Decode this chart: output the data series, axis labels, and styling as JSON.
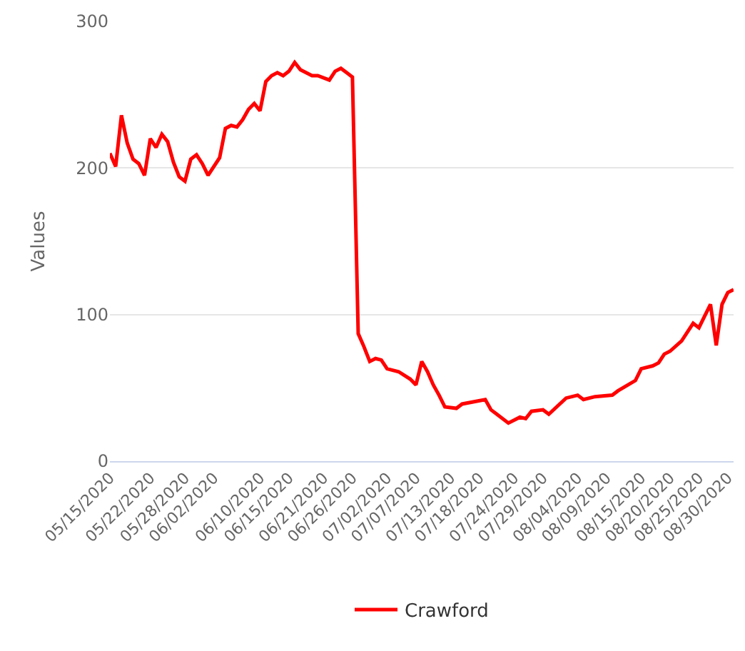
{
  "chart_data": {
    "type": "line",
    "ylabel": "Values",
    "x": [
      "2020-05-15",
      "2020-05-16",
      "2020-05-17",
      "2020-05-18",
      "2020-05-19",
      "2020-05-20",
      "2020-05-21",
      "2020-05-22",
      "2020-05-23",
      "2020-05-24",
      "2020-05-25",
      "2020-05-26",
      "2020-05-27",
      "2020-05-28",
      "2020-05-29",
      "2020-05-30",
      "2020-05-31",
      "2020-06-01",
      "2020-06-03",
      "2020-06-04",
      "2020-06-05",
      "2020-06-06",
      "2020-06-07",
      "2020-06-08",
      "2020-06-09",
      "2020-06-10",
      "2020-06-11",
      "2020-06-12",
      "2020-06-13",
      "2020-06-14",
      "2020-06-15",
      "2020-06-16",
      "2020-06-17",
      "2020-06-19",
      "2020-06-20",
      "2020-06-22",
      "2020-06-23",
      "2020-06-24",
      "2020-06-25",
      "2020-06-26",
      "2020-06-27",
      "2020-06-28",
      "2020-06-29",
      "2020-06-30",
      "2020-07-01",
      "2020-07-02",
      "2020-07-04",
      "2020-07-06",
      "2020-07-07",
      "2020-07-08",
      "2020-07-09",
      "2020-07-10",
      "2020-07-11",
      "2020-07-12",
      "2020-07-14",
      "2020-07-15",
      "2020-07-19",
      "2020-07-20",
      "2020-07-21",
      "2020-07-23",
      "2020-07-25",
      "2020-07-26",
      "2020-07-27",
      "2020-07-29",
      "2020-07-30",
      "2020-08-02",
      "2020-08-04",
      "2020-08-05",
      "2020-08-07",
      "2020-08-10",
      "2020-08-11",
      "2020-08-14",
      "2020-08-15",
      "2020-08-17",
      "2020-08-18",
      "2020-08-19",
      "2020-08-20",
      "2020-08-22",
      "2020-08-24",
      "2020-08-25",
      "2020-08-26",
      "2020-08-27",
      "2020-08-28",
      "2020-08-29",
      "2020-08-30",
      "2020-08-31"
    ],
    "series": [
      {
        "name": "Crawford",
        "color": "#ff0000",
        "values": [
          210,
          201,
          236,
          217,
          206,
          203,
          195,
          220,
          214,
          223,
          218,
          204,
          194,
          191,
          206,
          209,
          203,
          195,
          207,
          227,
          229,
          228,
          233,
          240,
          244,
          239,
          259,
          263,
          265,
          263,
          266,
          272,
          267,
          263,
          263,
          260,
          266,
          268,
          265,
          262,
          87,
          78,
          68,
          70,
          69,
          63,
          61,
          56,
          52,
          68,
          61,
          52,
          45,
          37,
          36,
          39,
          42,
          35,
          32,
          26,
          30,
          29,
          34,
          35,
          32,
          43,
          45,
          42,
          44,
          45,
          48,
          55,
          63,
          65,
          67,
          73,
          75,
          82,
          94,
          91,
          99,
          107,
          79,
          107,
          115,
          117
        ]
      }
    ],
    "xlim": [
      "2020-05-15",
      "2020-08-31"
    ],
    "xticks": [
      {
        "value": "2020-05-15",
        "label": "05/15/2020"
      },
      {
        "value": "2020-05-22",
        "label": "05/22/2020"
      },
      {
        "value": "2020-05-28",
        "label": "05/28/2020"
      },
      {
        "value": "2020-06-02",
        "label": "06/02/2020"
      },
      {
        "value": "2020-06-10",
        "label": "06/10/2020"
      },
      {
        "value": "2020-06-15",
        "label": "06/15/2020"
      },
      {
        "value": "2020-06-21",
        "label": "06/21/2020"
      },
      {
        "value": "2020-06-26",
        "label": "06/26/2020"
      },
      {
        "value": "2020-07-02",
        "label": "07/02/2020"
      },
      {
        "value": "2020-07-07",
        "label": "07/07/2020"
      },
      {
        "value": "2020-07-13",
        "label": "07/13/2020"
      },
      {
        "value": "2020-07-18",
        "label": "07/18/2020"
      },
      {
        "value": "2020-07-24",
        "label": "07/24/2020"
      },
      {
        "value": "2020-07-29",
        "label": "07/29/2020"
      },
      {
        "value": "2020-08-04",
        "label": "08/04/2020"
      },
      {
        "value": "2020-08-09",
        "label": "08/09/2020"
      },
      {
        "value": "2020-08-15",
        "label": "08/15/2020"
      },
      {
        "value": "2020-08-20",
        "label": "08/20/2020"
      },
      {
        "value": "2020-08-25",
        "label": "08/25/2020"
      },
      {
        "value": "2020-08-30",
        "label": "08/30/2020"
      }
    ],
    "ylim": [
      0,
      300
    ],
    "yticks": [
      0,
      100,
      200,
      300
    ],
    "grid": "y",
    "legend": "bottom",
    "marker": "none",
    "line_style": "solid"
  }
}
